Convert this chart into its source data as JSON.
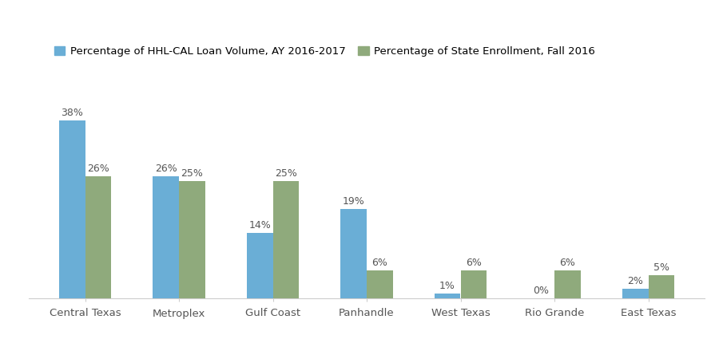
{
  "categories": [
    "Central Texas",
    "Metroplex",
    "Gulf Coast",
    "Panhandle",
    "West Texas",
    "Rio Grande",
    "East Texas"
  ],
  "loan_volume": [
    38,
    26,
    14,
    19,
    1,
    0,
    2
  ],
  "enrollment": [
    26,
    25,
    25,
    6,
    6,
    6,
    5
  ],
  "bar_color_blue": "#6aaed6",
  "bar_color_green": "#8faa7c",
  "background_color": "#ffffff",
  "legend_label_blue": "Percentage of HHL-CAL Loan Volume, AY 2016-2017",
  "legend_label_green": "Percentage of State Enrollment, Fall 2016",
  "ylim": [
    0,
    55
  ],
  "bar_width": 0.28,
  "label_fontsize": 9,
  "legend_fontsize": 9.5,
  "tick_fontsize": 9.5
}
